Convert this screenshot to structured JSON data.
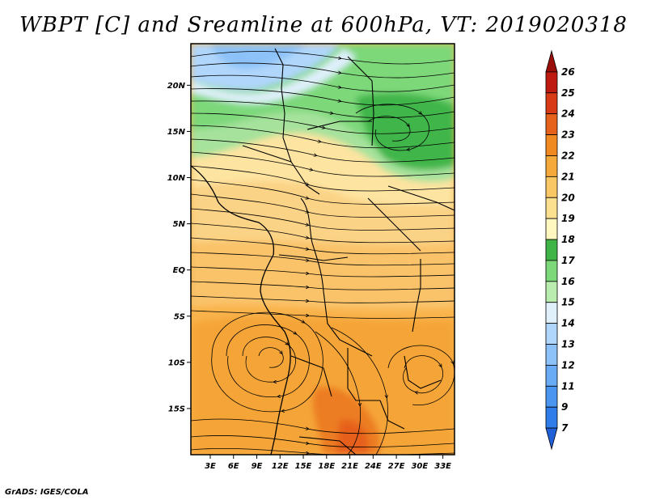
{
  "title": "WBPT [C] and Sreamline at 600hPa, VT: 2019020318",
  "credit": "GrADS: IGES/COLA",
  "map": {
    "lat_labels": [
      "20N",
      "15N",
      "10N",
      "5N",
      "EQ",
      "5S",
      "10S",
      "15S"
    ],
    "lat_values": [
      20,
      15,
      10,
      5,
      0,
      -5,
      -10,
      -15
    ],
    "lon_labels": [
      "3E",
      "6E",
      "9E",
      "12E",
      "15E",
      "18E",
      "21E",
      "24E",
      "27E",
      "30E",
      "33E"
    ],
    "lon_values": [
      3,
      6,
      9,
      12,
      15,
      18,
      21,
      24,
      27,
      30,
      33
    ],
    "lat_range": [
      -20,
      24.5
    ],
    "lon_range": [
      0.5,
      34.5
    ]
  },
  "colorbar": {
    "labels": [
      "7",
      "9",
      "11",
      "12",
      "13",
      "14",
      "15",
      "16",
      "17",
      "18",
      "19",
      "20",
      "21",
      "22",
      "23",
      "24",
      "25",
      "26"
    ],
    "colors": [
      "#1f5fd8",
      "#2f7de8",
      "#4a95f0",
      "#6aabf5",
      "#8cc2f8",
      "#b0d6fb",
      "#dff0fb",
      "#b9ecae",
      "#7dd87a",
      "#3fb548",
      "#fff7bf",
      "#fbe08f",
      "#f9c864",
      "#f5a93a",
      "#f08a20",
      "#e6611a",
      "#d83a15",
      "#bf1a10",
      "#9a0e0a"
    ]
  },
  "legend_colors": {
    "blue_low": "#8cc2f8",
    "green": "#7dd87a",
    "dark_green": "#3fb548",
    "yellow": "#fbe08f",
    "orange": "#f9b34b",
    "dark_orange": "#f08a20"
  }
}
